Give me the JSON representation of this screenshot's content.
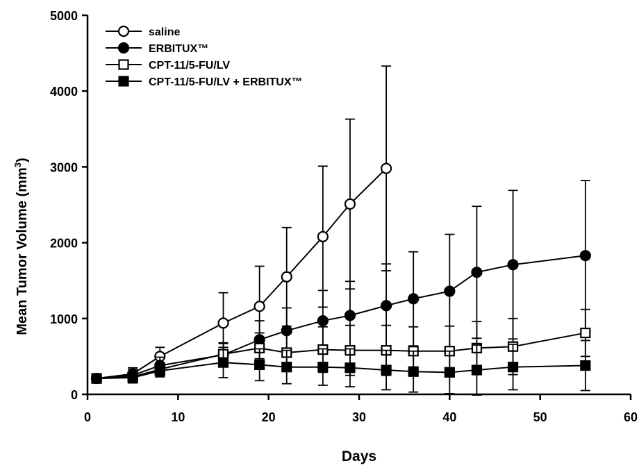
{
  "chart_data": {
    "type": "line",
    "title": "",
    "xlabel": "Days",
    "ylabel_main": "Mean Tumor Volume (mm",
    "ylabel_sup": "3",
    "ylabel_end": ")",
    "xlim": [
      0,
      60
    ],
    "ylim": [
      0,
      5000
    ],
    "xticks": [
      0,
      10,
      20,
      30,
      40,
      50,
      60
    ],
    "yticks": [
      0,
      1000,
      2000,
      3000,
      4000,
      5000
    ],
    "grid": false,
    "legend_position": "top-left",
    "series": [
      {
        "name": "saline",
        "marker": "circle-open",
        "x": [
          1,
          5,
          8,
          15,
          19,
          22,
          26,
          29,
          33
        ],
        "y": [
          210,
          270,
          500,
          940,
          1160,
          1550,
          2080,
          2510,
          2980
        ],
        "err": [
          60,
          80,
          120,
          400,
          530,
          650,
          930,
          1120,
          1350
        ]
      },
      {
        "name": "ERBITUX™",
        "marker": "circle-filled",
        "x": [
          1,
          5,
          8,
          15,
          19,
          22,
          26,
          29,
          33,
          36,
          40,
          43,
          47,
          55
        ],
        "y": [
          210,
          250,
          380,
          520,
          720,
          840,
          970,
          1040,
          1170,
          1260,
          1360,
          1610,
          1710,
          1830
        ],
        "err": [
          60,
          80,
          110,
          150,
          250,
          300,
          400,
          450,
          550,
          620,
          750,
          870,
          980,
          990
        ]
      },
      {
        "name": "CPT-11/5-FU/LV",
        "marker": "square-open",
        "x": [
          1,
          5,
          8,
          15,
          19,
          22,
          26,
          29,
          33,
          36,
          40,
          43,
          47,
          55
        ],
        "y": [
          210,
          230,
          330,
          530,
          610,
          550,
          590,
          580,
          580,
          570,
          570,
          610,
          630,
          810
        ],
        "err": [
          60,
          70,
          90,
          150,
          200,
          250,
          300,
          330,
          330,
          320,
          330,
          350,
          370,
          310
        ]
      },
      {
        "name": "CPT-11/5-FU/LV + ERBITUX™",
        "marker": "square-filled",
        "x": [
          1,
          5,
          8,
          15,
          19,
          22,
          26,
          29,
          33,
          36,
          40,
          43,
          47,
          55
        ],
        "y": [
          210,
          220,
          310,
          420,
          390,
          360,
          360,
          350,
          320,
          300,
          290,
          320,
          360,
          380
        ],
        "err": [
          60,
          70,
          80,
          200,
          210,
          220,
          240,
          250,
          260,
          270,
          280,
          330,
          300,
          330
        ]
      }
    ]
  }
}
